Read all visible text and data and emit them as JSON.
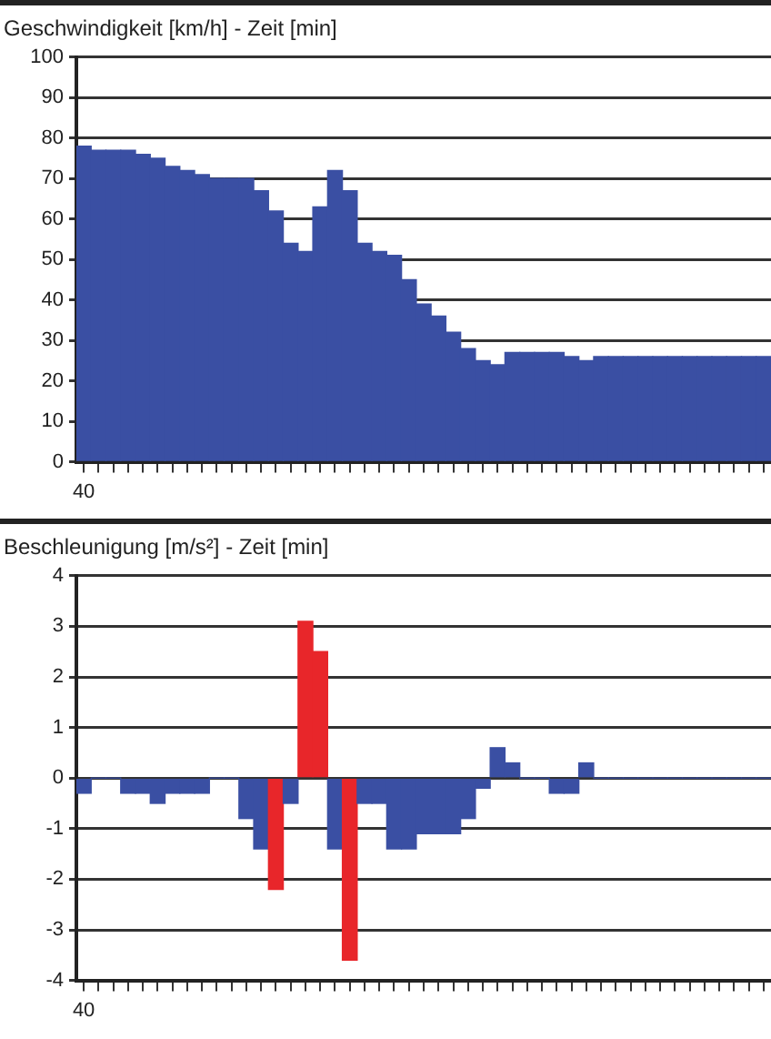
{
  "chart_data": [
    {
      "type": "bar",
      "title": "Geschwindigkeit [km/h] - Zeit [min]",
      "categories": [
        "40",
        null,
        null,
        null,
        null,
        null,
        null,
        null,
        null,
        null,
        null,
        null,
        null,
        null,
        null,
        null,
        null,
        null,
        null,
        null,
        null,
        null,
        null,
        null,
        null,
        null,
        null,
        null,
        null,
        null,
        null,
        null,
        null,
        null,
        null,
        null,
        null,
        null,
        null,
        null,
        null,
        null,
        null,
        null,
        null,
        null,
        null
      ],
      "values": [
        78,
        77,
        77,
        77,
        76,
        75,
        73,
        72,
        71,
        70,
        70,
        70,
        67,
        62,
        54,
        52,
        63,
        72,
        67,
        54,
        52,
        51,
        45,
        39,
        36,
        32,
        28,
        25,
        24,
        27,
        27,
        27,
        27,
        26,
        25,
        26,
        26,
        26,
        26,
        26,
        26,
        26,
        26,
        26,
        26,
        26,
        26
      ],
      "color": "#3a4fa3",
      "ylim": [
        0,
        100
      ],
      "yticks": [
        0,
        10,
        20,
        30,
        40,
        50,
        60,
        70,
        80,
        90,
        100
      ],
      "grid": "y"
    },
    {
      "type": "bar",
      "title": "Beschleunigung [m/s²] - Zeit [min]",
      "categories": [
        "40",
        null,
        null,
        null,
        null,
        null,
        null,
        null,
        null,
        null,
        null,
        null,
        null,
        null,
        null,
        null,
        null,
        null,
        null,
        null,
        null,
        null,
        null,
        null,
        null,
        null,
        null,
        null,
        null,
        null,
        null,
        null,
        null,
        null,
        null,
        null,
        null,
        null,
        null,
        null,
        null,
        null,
        null,
        null,
        null,
        null,
        null
      ],
      "values": [
        -0.3,
        0,
        0,
        -0.3,
        -0.3,
        -0.5,
        -0.3,
        -0.3,
        -0.3,
        0,
        0,
        -0.8,
        -1.4,
        -2.2,
        -0.5,
        3.1,
        2.5,
        -1.4,
        -3.6,
        -0.5,
        -0.5,
        -1.4,
        -1.4,
        -1.1,
        -1.1,
        -1.1,
        -0.8,
        -0.2,
        0.6,
        0.3,
        0,
        0,
        -0.3,
        -0.3,
        0.3,
        0,
        0,
        0,
        0,
        0,
        0,
        0,
        0,
        0,
        0,
        0,
        0
      ],
      "colors": [
        "#3a4fa3",
        "#3a4fa3",
        "#3a4fa3",
        "#3a4fa3",
        "#3a4fa3",
        "#3a4fa3",
        "#3a4fa3",
        "#3a4fa3",
        "#3a4fa3",
        "#3a4fa3",
        "#3a4fa3",
        "#3a4fa3",
        "#3a4fa3",
        "#e8262a",
        "#3a4fa3",
        "#e8262a",
        "#e8262a",
        "#3a4fa3",
        "#e8262a",
        "#3a4fa3",
        "#3a4fa3",
        "#3a4fa3",
        "#3a4fa3",
        "#3a4fa3",
        "#3a4fa3",
        "#3a4fa3",
        "#3a4fa3",
        "#3a4fa3",
        "#3a4fa3",
        "#3a4fa3",
        "#3a4fa3",
        "#3a4fa3",
        "#3a4fa3",
        "#3a4fa3",
        "#3a4fa3",
        "#3a4fa3",
        "#3a4fa3",
        "#3a4fa3",
        "#3a4fa3",
        "#3a4fa3",
        "#3a4fa3",
        "#3a4fa3",
        "#3a4fa3",
        "#3a4fa3",
        "#3a4fa3",
        "#3a4fa3",
        "#3a4fa3"
      ],
      "ylim": [
        -4,
        4
      ],
      "yticks": [
        -4,
        -3,
        -2,
        -1,
        0,
        1,
        2,
        3,
        4
      ],
      "grid": "y"
    }
  ]
}
